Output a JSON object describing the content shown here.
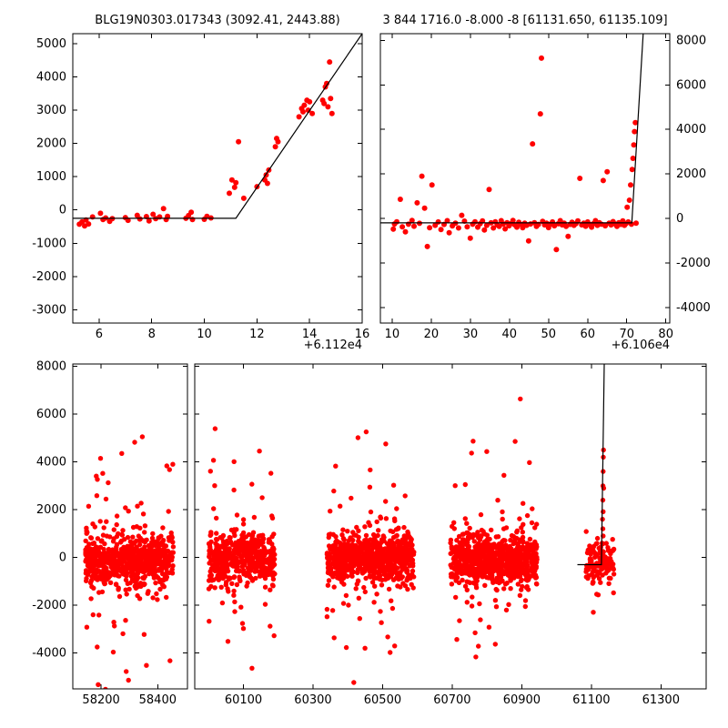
{
  "figure": {
    "background": "#ffffff",
    "marker_color": "#ff0000",
    "line_color": "#000000",
    "axis_color": "#000000"
  },
  "chart_data": [
    {
      "type": "scatter",
      "title": "BLG19N0303.017343 (3092.41, 2443.88)",
      "xlabel": "",
      "ylabel": "",
      "x_offset_label": "+6.112e4",
      "xlim": [
        5,
        16
      ],
      "ylim": [
        -3400,
        5300
      ],
      "xticks": [
        6,
        8,
        10,
        12,
        14,
        16
      ],
      "yticks": [
        5000,
        4000,
        3000,
        2000,
        1000,
        0,
        -1000,
        -2000,
        -3000
      ],
      "ytick_side": "left",
      "grid": false,
      "model_line": [
        [
          5,
          -250
        ],
        [
          11.2,
          -250
        ],
        [
          16,
          5300
        ]
      ],
      "points": [
        [
          5.25,
          -430
        ],
        [
          5.35,
          -360
        ],
        [
          5.45,
          -480
        ],
        [
          5.5,
          -300
        ],
        [
          5.6,
          -420
        ],
        [
          5.75,
          -210
        ],
        [
          6.05,
          -100
        ],
        [
          6.15,
          -290
        ],
        [
          6.25,
          -240
        ],
        [
          6.4,
          -340
        ],
        [
          6.5,
          -260
        ],
        [
          7.0,
          -230
        ],
        [
          7.1,
          -310
        ],
        [
          7.45,
          -160
        ],
        [
          7.55,
          -270
        ],
        [
          7.8,
          -200
        ],
        [
          7.9,
          -330
        ],
        [
          8.05,
          -130
        ],
        [
          8.15,
          -260
        ],
        [
          8.3,
          -210
        ],
        [
          8.45,
          40
        ],
        [
          8.55,
          -290
        ],
        [
          8.6,
          -190
        ],
        [
          9.3,
          -250
        ],
        [
          9.4,
          -170
        ],
        [
          9.5,
          -70
        ],
        [
          9.55,
          -290
        ],
        [
          10.0,
          -280
        ],
        [
          10.1,
          -190
        ],
        [
          10.25,
          -240
        ],
        [
          10.95,
          500
        ],
        [
          11.05,
          900
        ],
        [
          11.15,
          680
        ],
        [
          11.2,
          820
        ],
        [
          11.3,
          2050
        ],
        [
          11.5,
          350
        ],
        [
          12.0,
          700
        ],
        [
          12.3,
          900
        ],
        [
          12.35,
          1050
        ],
        [
          12.4,
          800
        ],
        [
          12.45,
          1200
        ],
        [
          12.7,
          1900
        ],
        [
          12.75,
          2150
        ],
        [
          12.8,
          2050
        ],
        [
          13.6,
          2800
        ],
        [
          13.7,
          3050
        ],
        [
          13.75,
          2950
        ],
        [
          13.8,
          3150
        ],
        [
          13.9,
          3300
        ],
        [
          13.95,
          3000
        ],
        [
          14.0,
          3250
        ],
        [
          14.1,
          2900
        ],
        [
          14.5,
          3300
        ],
        [
          14.55,
          3200
        ],
        [
          14.6,
          3700
        ],
        [
          14.65,
          3800
        ],
        [
          14.7,
          3100
        ],
        [
          14.76,
          4450
        ],
        [
          14.8,
          3350
        ],
        [
          14.85,
          2900
        ]
      ]
    },
    {
      "type": "scatter",
      "title": "3 844 1716.0 -8.000 -8 [61131.650, 61135.109]",
      "xlabel": "",
      "ylabel": "",
      "x_offset_label": "+6.106e4",
      "xlim": [
        7,
        81
      ],
      "ylim": [
        -4700,
        8300
      ],
      "xticks": [
        10,
        20,
        30,
        40,
        50,
        60,
        70,
        80
      ],
      "yticks": [
        8000,
        6000,
        4000,
        2000,
        0,
        -2000,
        -4000
      ],
      "ytick_side": "right",
      "grid": false,
      "model_line": [
        [
          7,
          -200
        ],
        [
          71.3,
          -200
        ],
        [
          74.2,
          8300
        ]
      ],
      "points": [
        [
          10.3,
          -480
        ],
        [
          10.6,
          -250
        ],
        [
          11.2,
          -150
        ],
        [
          12.1,
          860
        ],
        [
          12.6,
          -380
        ],
        [
          13.4,
          -600
        ],
        [
          14.2,
          -260
        ],
        [
          15.1,
          -90
        ],
        [
          15.6,
          -350
        ],
        [
          16.4,
          700
        ],
        [
          17.0,
          -220
        ],
        [
          17.6,
          1900
        ],
        [
          18.3,
          460
        ],
        [
          19.0,
          -1260
        ],
        [
          19.6,
          -420
        ],
        [
          20.2,
          1500
        ],
        [
          21.0,
          -310
        ],
        [
          21.8,
          -160
        ],
        [
          22.5,
          -500
        ],
        [
          23.3,
          -270
        ],
        [
          24.1,
          -100
        ],
        [
          24.6,
          -640
        ],
        [
          25.4,
          -340
        ],
        [
          26.2,
          -210
        ],
        [
          27.0,
          -430
        ],
        [
          27.8,
          140
        ],
        [
          28.5,
          -120
        ],
        [
          29.2,
          -380
        ],
        [
          30.0,
          -890
        ],
        [
          30.6,
          -260
        ],
        [
          31.2,
          -150
        ],
        [
          31.9,
          -390
        ],
        [
          32.5,
          -240
        ],
        [
          33.1,
          -110
        ],
        [
          33.6,
          -520
        ],
        [
          34.2,
          -310
        ],
        [
          34.8,
          1300
        ],
        [
          35.3,
          -200
        ],
        [
          35.9,
          -430
        ],
        [
          36.4,
          -150
        ],
        [
          36.9,
          -290
        ],
        [
          37.4,
          -360
        ],
        [
          37.9,
          -100
        ],
        [
          38.4,
          -250
        ],
        [
          38.9,
          -470
        ],
        [
          39.4,
          -190
        ],
        [
          39.9,
          -330
        ],
        [
          40.4,
          -230
        ],
        [
          40.9,
          -90
        ],
        [
          41.4,
          -290
        ],
        [
          41.9,
          -390
        ],
        [
          42.4,
          -170
        ],
        [
          42.9,
          -270
        ],
        [
          43.4,
          -420
        ],
        [
          43.9,
          -210
        ],
        [
          44.4,
          -310
        ],
        [
          44.9,
          -1010
        ],
        [
          45.4,
          -250
        ],
        [
          45.9,
          3350
        ],
        [
          46.4,
          -190
        ],
        [
          46.9,
          -360
        ],
        [
          47.4,
          -270
        ],
        [
          47.9,
          4700
        ],
        [
          48.2,
          7200
        ],
        [
          48.5,
          -130
        ],
        [
          49.0,
          -290
        ],
        [
          49.5,
          -210
        ],
        [
          50.0,
          -410
        ],
        [
          50.5,
          -260
        ],
        [
          51.0,
          -160
        ],
        [
          51.5,
          -330
        ],
        [
          52.0,
          -1400
        ],
        [
          52.5,
          -240
        ],
        [
          53.0,
          -100
        ],
        [
          53.5,
          -290
        ],
        [
          54.0,
          -210
        ],
        [
          54.5,
          -360
        ],
        [
          55.0,
          -810
        ],
        [
          55.5,
          -270
        ],
        [
          56.0,
          -170
        ],
        [
          56.5,
          -310
        ],
        [
          57.0,
          -230
        ],
        [
          57.5,
          -110
        ],
        [
          58.0,
          1800
        ],
        [
          58.5,
          -290
        ],
        [
          59.0,
          -210
        ],
        [
          59.5,
          -350
        ],
        [
          60.0,
          -160
        ],
        [
          60.5,
          -270
        ],
        [
          61.0,
          -390
        ],
        [
          61.5,
          -230
        ],
        [
          62.0,
          -100
        ],
        [
          62.5,
          -310
        ],
        [
          63.0,
          -190
        ],
        [
          63.5,
          -260
        ],
        [
          64.0,
          1700
        ],
        [
          64.5,
          -330
        ],
        [
          65.0,
          2100
        ],
        [
          65.5,
          -210
        ],
        [
          66.0,
          -290
        ],
        [
          66.5,
          -140
        ],
        [
          67.0,
          -250
        ],
        [
          67.5,
          -360
        ],
        [
          68.0,
          -190
        ],
        [
          68.5,
          -270
        ],
        [
          69.0,
          -110
        ],
        [
          69.4,
          -310
        ],
        [
          69.8,
          -230
        ],
        [
          70.1,
          500
        ],
        [
          70.4,
          -160
        ],
        [
          70.7,
          820
        ],
        [
          71.0,
          1500
        ],
        [
          71.2,
          -260
        ],
        [
          71.4,
          2200
        ],
        [
          71.6,
          2700
        ],
        [
          71.8,
          3300
        ],
        [
          72.0,
          3900
        ],
        [
          72.2,
          4300
        ],
        [
          72.4,
          -210
        ]
      ]
    },
    {
      "type": "scatter",
      "title": "",
      "xlabel": "",
      "ylabel": "",
      "broken_x_axis": true,
      "segments": [
        {
          "xlim": [
            58100,
            58505
          ],
          "xticks": [
            58200,
            58400
          ]
        },
        {
          "xlim": [
            59960,
            61430
          ],
          "xticks": [
            60100,
            60300,
            60500,
            60700,
            60900,
            61100,
            61300
          ]
        }
      ],
      "ylim": [
        -5500,
        8100
      ],
      "yticks": [
        8000,
        6000,
        4000,
        2000,
        0,
        -2000,
        -4000
      ],
      "ytick_side": "left",
      "grid": false,
      "model_line": [
        [
          61060,
          -300
        ],
        [
          61129,
          -300
        ],
        [
          61137,
          8100
        ]
      ],
      "seed": 7,
      "clusters": [
        {
          "x_min": 58145,
          "x_max": 58455,
          "count": 720,
          "y_center": -100,
          "y_core_sd": 520,
          "outlier_frac": 0.1,
          "y_outlier_sd": 2700
        },
        {
          "x_min": 60000,
          "x_max": 60190,
          "count": 520,
          "y_center": -60,
          "y_core_sd": 500,
          "outlier_frac": 0.1,
          "y_outlier_sd": 2500
        },
        {
          "x_min": 60340,
          "x_max": 60590,
          "count": 780,
          "y_center": -60,
          "y_core_sd": 500,
          "outlier_frac": 0.09,
          "y_outlier_sd": 2500
        },
        {
          "x_min": 60695,
          "x_max": 60945,
          "count": 800,
          "y_center": -90,
          "y_core_sd": 500,
          "outlier_frac": 0.09,
          "y_outlier_sd": 2400
        },
        {
          "x_min": 61085,
          "x_max": 61165,
          "count": 130,
          "y_center": -200,
          "y_core_sd": 380,
          "outlier_frac": 0.1,
          "y_outlier_sd": 1500
        }
      ],
      "extra_points": [
        [
          61132,
          1600
        ],
        [
          61133,
          2400
        ],
        [
          61133.5,
          3000
        ],
        [
          61134,
          3600
        ],
        [
          61134.5,
          4200
        ],
        [
          61135,
          4500
        ],
        [
          61135.5,
          2900
        ],
        [
          61134,
          900
        ],
        [
          61133,
          1200
        ]
      ]
    }
  ]
}
